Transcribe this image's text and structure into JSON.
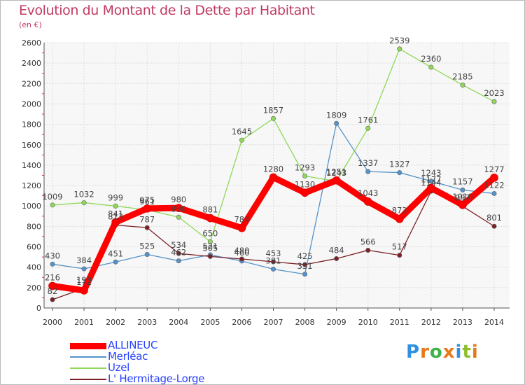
{
  "title": "Evolution du Montant de la Dette par Habitant",
  "unit": "(en €)",
  "logo": {
    "text": "Proxiti",
    "letter_colors": [
      "#2f8fe0",
      "#e8791a",
      "#3fb14a",
      "#e8791a",
      "#2f8fe0",
      "#8fbe2b",
      "#e8791a"
    ]
  },
  "chart_data": {
    "type": "line",
    "x": [
      "2000",
      "2001",
      "2002",
      "2003",
      "2004",
      "2005",
      "2006",
      "2007",
      "2008",
      "2009",
      "2010",
      "2011",
      "2012",
      "2013",
      "2014"
    ],
    "ylim": [
      0,
      2600
    ],
    "yticks": [
      0,
      200,
      400,
      600,
      800,
      1000,
      1200,
      1400,
      1600,
      1800,
      2000,
      2200,
      2400,
      2600
    ],
    "grid": true,
    "legend_position": "bottom-left",
    "series": [
      {
        "name": "ALLINEUC",
        "color": "#ff0000",
        "emphasis": true,
        "values": [
          216,
          172,
          841,
          975,
          980,
          881,
          784,
          1280,
          1130,
          1251,
          1043,
          873,
          1177,
          1010,
          1277
        ],
        "labels": [
          "216",
          "172",
          "841",
          "975",
          "980",
          "881",
          "784",
          "1280",
          "1130",
          "1251",
          "1043",
          "873",
          "1177",
          "1010",
          "1277"
        ]
      },
      {
        "name": "Merléac",
        "color": "#5592c9",
        "emphasis": false,
        "values": [
          430,
          384,
          451,
          525,
          462,
          521,
          460,
          381,
          331,
          1809,
          1337,
          1327,
          1243,
          1157,
          1122
        ],
        "labels": [
          "430",
          "384",
          "451",
          "525",
          "462",
          "521",
          "460",
          "381",
          "331",
          "1809",
          "1337",
          "1327",
          "1243",
          "1157",
          "1122"
        ]
      },
      {
        "name": "Uzel",
        "color": "#8fd858",
        "emphasis": false,
        "values": [
          1009,
          1032,
          999,
          961,
          890,
          650,
          1645,
          1857,
          1293,
          1243,
          1761,
          2539,
          2360,
          2185,
          2023
        ],
        "labels": [
          "1009",
          "1032",
          "999",
          "961",
          "890",
          "650",
          "1645",
          "1857",
          "1293",
          "1243",
          "1761",
          "2539",
          "2360",
          "2185",
          "2023"
        ]
      },
      {
        "name": "L' Hermitage-Lorge",
        "color": "#7b1f24",
        "emphasis": false,
        "values": [
          82,
          193,
          813,
          787,
          534,
          505,
          480,
          453,
          425,
          484,
          566,
          517,
          1144,
          997,
          801
        ],
        "labels": [
          "82",
          "193",
          "813",
          "787",
          "534",
          "505",
          "480",
          "453",
          "425",
          "484",
          "566",
          "517",
          "1144",
          "997",
          "801"
        ]
      }
    ]
  }
}
